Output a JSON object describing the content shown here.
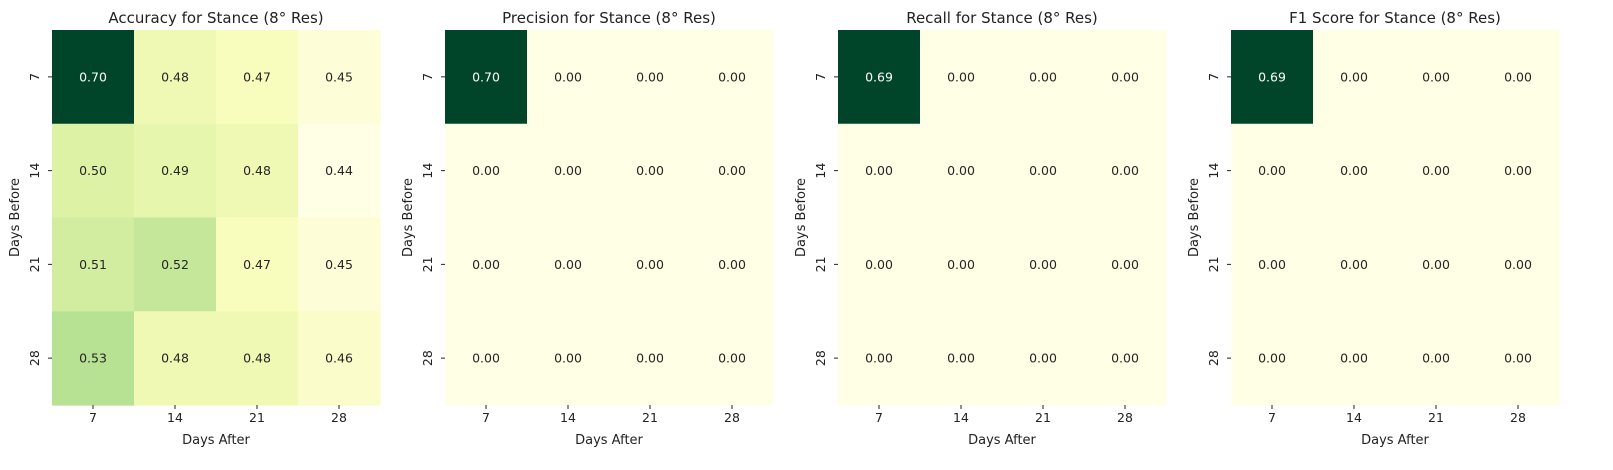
{
  "chart_data": [
    {
      "type": "heatmap",
      "title": "Accuracy for Stance (8° Res)",
      "xlabel": "Days After",
      "ylabel": "Days Before",
      "x_categories": [
        "7",
        "14",
        "21",
        "28"
      ],
      "y_categories": [
        "7",
        "14",
        "21",
        "28"
      ],
      "values": [
        [
          0.7,
          0.48,
          0.47,
          0.45
        ],
        [
          0.5,
          0.49,
          0.48,
          0.44
        ],
        [
          0.51,
          0.52,
          0.47,
          0.45
        ],
        [
          0.53,
          0.48,
          0.48,
          0.46
        ]
      ],
      "colormap": "YlGn",
      "colorbar": false,
      "annotated": true
    },
    {
      "type": "heatmap",
      "title": "Precision for Stance (8° Res)",
      "xlabel": "Days After",
      "ylabel": "Days Before",
      "x_categories": [
        "7",
        "14",
        "21",
        "28"
      ],
      "y_categories": [
        "7",
        "14",
        "21",
        "28"
      ],
      "values": [
        [
          0.7,
          0.0,
          0.0,
          0.0
        ],
        [
          0.0,
          0.0,
          0.0,
          0.0
        ],
        [
          0.0,
          0.0,
          0.0,
          0.0
        ],
        [
          0.0,
          0.0,
          0.0,
          0.0
        ]
      ],
      "colormap": "YlGn",
      "colorbar": false,
      "annotated": true
    },
    {
      "type": "heatmap",
      "title": "Recall for Stance (8° Res)",
      "xlabel": "Days After",
      "ylabel": "Days Before",
      "x_categories": [
        "7",
        "14",
        "21",
        "28"
      ],
      "y_categories": [
        "7",
        "14",
        "21",
        "28"
      ],
      "values": [
        [
          0.69,
          0.0,
          0.0,
          0.0
        ],
        [
          0.0,
          0.0,
          0.0,
          0.0
        ],
        [
          0.0,
          0.0,
          0.0,
          0.0
        ],
        [
          0.0,
          0.0,
          0.0,
          0.0
        ]
      ],
      "colormap": "YlGn",
      "colorbar": false,
      "annotated": true
    },
    {
      "type": "heatmap",
      "title": "F1 Score for Stance (8° Res)",
      "xlabel": "Days After",
      "ylabel": "Days Before",
      "x_categories": [
        "7",
        "14",
        "21",
        "28"
      ],
      "y_categories": [
        "7",
        "14",
        "21",
        "28"
      ],
      "values": [
        [
          0.69,
          0.0,
          0.0,
          0.0
        ],
        [
          0.0,
          0.0,
          0.0,
          0.0
        ],
        [
          0.0,
          0.0,
          0.0,
          0.0
        ],
        [
          0.0,
          0.0,
          0.0,
          0.0
        ]
      ],
      "colormap": "YlGn",
      "colorbar": false,
      "annotated": true
    }
  ]
}
